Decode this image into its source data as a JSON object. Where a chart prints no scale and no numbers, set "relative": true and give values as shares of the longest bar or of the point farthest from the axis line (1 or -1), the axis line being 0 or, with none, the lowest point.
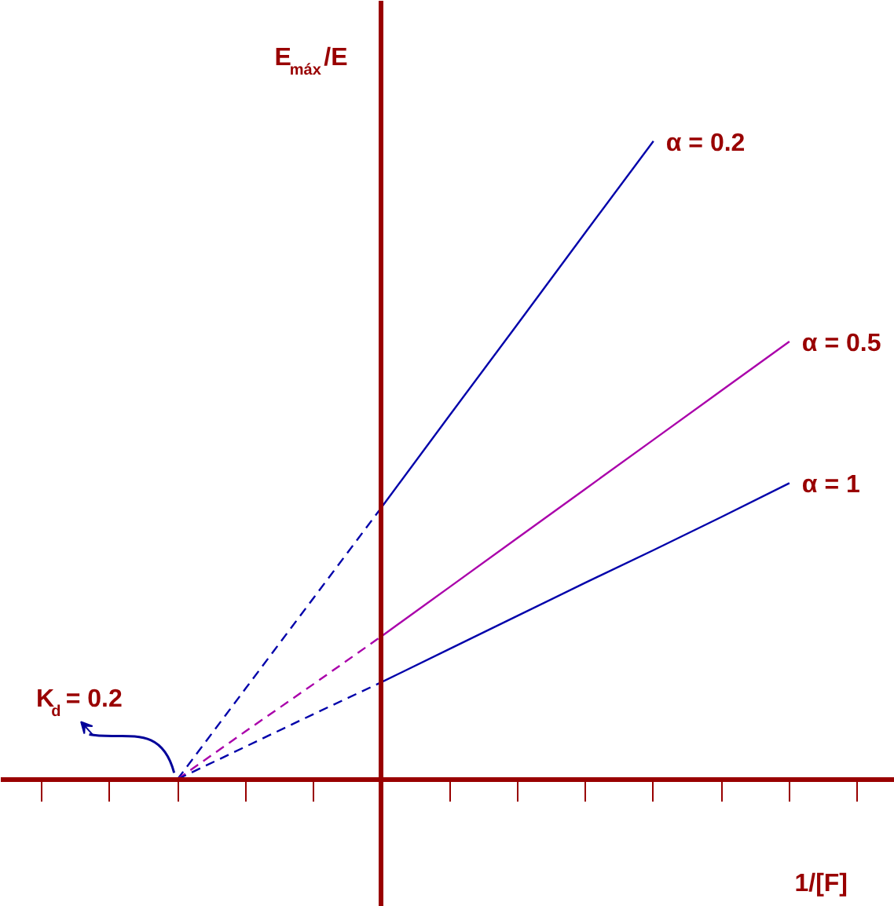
{
  "chart_data": {
    "type": "line",
    "relative": true,
    "xlabel": "1/[F]",
    "ylabel": "E$_{máx}$/E",
    "categories": [
      null,
      null,
      null,
      null,
      null,
      null,
      null,
      null,
      null,
      null,
      null,
      null,
      null
    ],
    "series": [
      {
        "color": "#0000aa",
        "line_style": "dashed",
        "values": [
          null,
          null,
          0,
          0.142,
          0.284,
          0.426,
          null,
          null,
          null,
          null,
          null,
          null,
          null
        ]
      },
      {
        "name": "α = 0.2",
        "color": "#0000aa",
        "line_style": "solid",
        "values": [
          null,
          null,
          null,
          null,
          null,
          0.426,
          0.57,
          0.713,
          0.857,
          1,
          null,
          null,
          null
        ]
      },
      {
        "color": "#aa00aa",
        "line_style": "dashed",
        "values": [
          null,
          null,
          0,
          0.075,
          0.149,
          0.224,
          null,
          null,
          null,
          null,
          null,
          null,
          null
        ]
      },
      {
        "name": "α = 0.5",
        "color": "#aa00aa",
        "line_style": "solid",
        "values": [
          null,
          null,
          null,
          null,
          null,
          0.224,
          0.301,
          0.378,
          0.455,
          0.532,
          0.609,
          0.686,
          null
        ]
      },
      {
        "color": "#0000aa",
        "line_style": "dashed",
        "values": [
          null,
          null,
          0,
          0.051,
          0.102,
          0.152,
          null,
          null,
          null,
          null,
          null,
          null,
          null
        ]
      },
      {
        "name": "α = 1",
        "color": "#0000aa",
        "line_style": "solid",
        "values": [
          null,
          null,
          null,
          null,
          null,
          0.152,
          0.204,
          0.256,
          0.308,
          0.359,
          0.411,
          0.464,
          null
        ]
      }
    ],
    "annotations": [
      "K$_{d}$ = 0.2"
    ],
    "grid": false,
    "marker": "none"
  }
}
